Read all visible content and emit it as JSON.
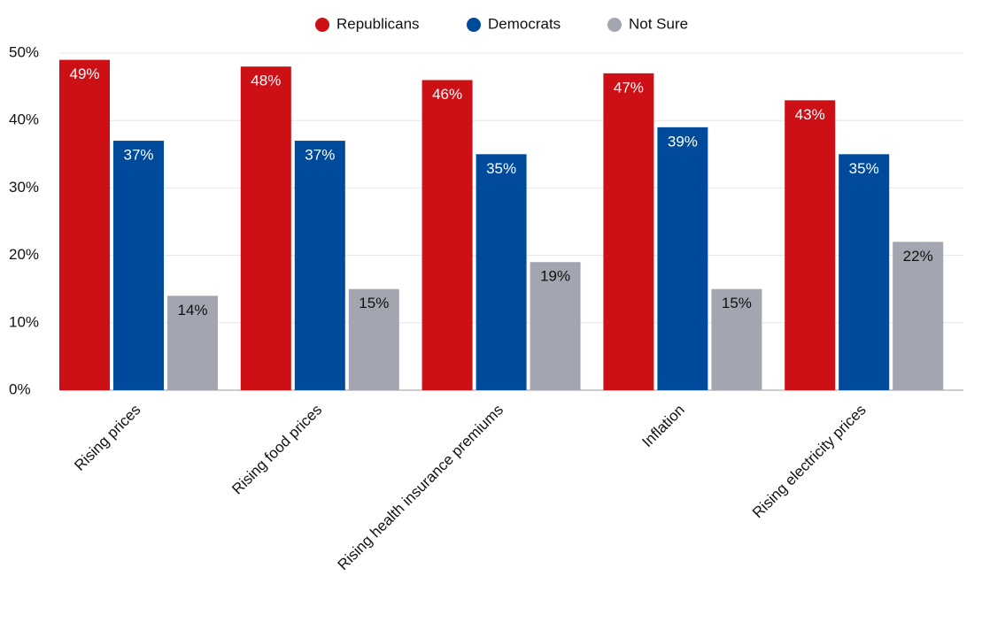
{
  "chart_data": {
    "type": "grouped-bar",
    "categories": [
      "Rising prices",
      "Rising food prices",
      "Rising health insurance premiums",
      "Inflation",
      "Rising electricity prices"
    ],
    "series": [
      {
        "name": "Republicans",
        "color": "#cc1016",
        "values": [
          49,
          48,
          46,
          47,
          43
        ],
        "value_labels": [
          "49%",
          "48%",
          "46%",
          "47%",
          "43%"
        ]
      },
      {
        "name": "Democrats",
        "color": "#004a9c",
        "values": [
          37,
          37,
          35,
          39,
          35
        ],
        "value_labels": [
          "37%",
          "37%",
          "35%",
          "39%",
          "35%"
        ]
      },
      {
        "name": "Not Sure",
        "color": "#a3a6b0",
        "values": [
          14,
          15,
          19,
          15,
          22
        ],
        "value_labels": [
          "14%",
          "15%",
          "19%",
          "15%",
          "22%"
        ]
      }
    ],
    "ylim": [
      0,
      50
    ],
    "yticks": [
      {
        "value": 0,
        "label": "0%"
      },
      {
        "value": 10,
        "label": "10%"
      },
      {
        "value": 20,
        "label": "20%"
      },
      {
        "value": 30,
        "label": "30%"
      },
      {
        "value": 40,
        "label": "40%"
      },
      {
        "value": 50,
        "label": "50%"
      }
    ],
    "grid": true,
    "legend": "top"
  }
}
